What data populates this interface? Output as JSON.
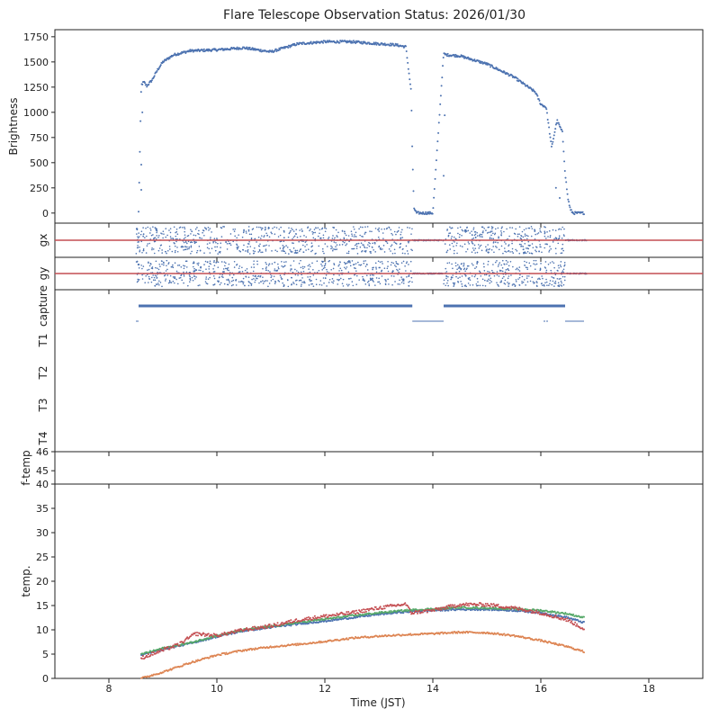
{
  "chart_data": {
    "type": "scatter",
    "title": "Flare Telescope Observation Status: 2026/01/30",
    "xlabel": "Time (JST)",
    "xlim": [
      7,
      19
    ],
    "xticks": [
      "8",
      "10",
      "12",
      "14",
      "16",
      "18"
    ],
    "colors": {
      "blue": "#4c72b0",
      "red": "#c44e52",
      "green": "#55a868",
      "orange": "#dd8452"
    },
    "panels": [
      {
        "id": "brightness",
        "ylabel": "Brightness",
        "ylim": [
          -100,
          1820
        ],
        "yticks": [
          "0",
          "250",
          "500",
          "750",
          "1000",
          "1250",
          "1500",
          "1750"
        ],
        "series": [
          {
            "name": "brightness",
            "color": "#4c72b0",
            "x": [
              8.55,
              8.6,
              8.63,
              8.65,
              8.7,
              8.8,
              8.9,
              9.0,
              9.2,
              9.5,
              10.0,
              10.5,
              11.0,
              11.5,
              12.0,
              12.5,
              13.0,
              13.3,
              13.5,
              13.6,
              13.62,
              13.65,
              13.7,
              14.0,
              14.2,
              14.25,
              14.5,
              15.0,
              15.5,
              15.9,
              16.0,
              16.1,
              16.2,
              16.3,
              16.4,
              16.45,
              16.5,
              16.55,
              16.6,
              16.8
            ],
            "y": [
              10,
              1270,
              1290,
              1300,
              1260,
              1320,
              1420,
              1500,
              1570,
              1610,
              1620,
              1640,
              1600,
              1680,
              1700,
              1700,
              1680,
              1670,
              1650,
              1200,
              600,
              50,
              0,
              0,
              1580,
              1570,
              1560,
              1480,
              1350,
              1200,
              1080,
              1050,
              650,
              920,
              800,
              400,
              150,
              30,
              0,
              0
            ]
          },
          {
            "name": "outliers",
            "color": "#4c72b0",
            "x": [
              8.6,
              8.6,
              8.62,
              14.2,
              14.22,
              16.28,
              16.35
            ],
            "y": [
              480,
              230,
              1000,
              370,
              970,
              250,
              150
            ]
          }
        ]
      },
      {
        "id": "gx",
        "ylabel": "gx",
        "ylim": [
          -1,
          1
        ],
        "reference_line": 0,
        "active_ranges": [
          [
            8.5,
            13.62
          ],
          [
            14.2,
            16.45
          ]
        ],
        "scatter_amplitude": 0.8
      },
      {
        "id": "gy",
        "ylabel": "gy",
        "ylim": [
          -1,
          1
        ],
        "reference_line": 0,
        "active_ranges": [
          [
            8.5,
            13.62
          ],
          [
            14.2,
            16.45
          ]
        ],
        "scatter_amplitude": 0.8
      },
      {
        "id": "capture",
        "ylabel_categories": [
          "capture",
          "T1",
          "T2",
          "T3",
          "T4"
        ],
        "capture_ranges": [
          [
            8.55,
            13.62
          ],
          [
            14.2,
            16.45
          ]
        ],
        "baseline_ranges": [
          [
            8.5,
            8.55
          ],
          [
            13.62,
            14.2
          ],
          [
            16.45,
            16.8
          ]
        ]
      },
      {
        "id": "f-temp",
        "ylabel": "f-temp",
        "ylim": [
          44.3,
          46
        ],
        "yticks": [
          "45",
          "46"
        ]
      },
      {
        "id": "temp",
        "ylabel": "temp.",
        "ylim": [
          0,
          40
        ],
        "yticks": [
          "0",
          "5",
          "10",
          "15",
          "20",
          "25",
          "30",
          "35",
          "40"
        ],
        "series": [
          {
            "name": "blue",
            "color": "#4c72b0",
            "x": [
              8.6,
              9.0,
              9.5,
              10.0,
              10.5,
              11.0,
              11.5,
              12.0,
              12.5,
              13.0,
              13.5,
              14.0,
              14.5,
              15.0,
              15.5,
              16.0,
              16.5,
              16.8
            ],
            "y": [
              4.8,
              6.0,
              7.2,
              8.6,
              9.8,
              10.5,
              11.2,
              11.8,
              12.5,
              13.2,
              13.7,
              14.0,
              14.2,
              14.2,
              14.0,
              13.5,
              12.5,
              11.5
            ]
          },
          {
            "name": "green",
            "color": "#55a868",
            "x": [
              8.6,
              9.0,
              9.5,
              10.0,
              10.5,
              11.0,
              11.5,
              12.0,
              12.5,
              13.0,
              13.5,
              14.0,
              14.5,
              15.0,
              15.5,
              16.0,
              16.5,
              16.8
            ],
            "y": [
              5.0,
              6.2,
              7.3,
              8.8,
              10.0,
              10.7,
              11.5,
              12.2,
              12.9,
              13.5,
              14.0,
              14.3,
              14.6,
              14.5,
              14.3,
              14.0,
              13.3,
              12.5
            ]
          },
          {
            "name": "red",
            "color": "#c44e52",
            "x": [
              8.6,
              9.0,
              9.3,
              9.6,
              10.0,
              10.5,
              11.0,
              11.5,
              12.0,
              12.5,
              13.0,
              13.5,
              13.6,
              14.0,
              14.5,
              15.0,
              15.5,
              16.0,
              16.5,
              16.8
            ],
            "y": [
              4.2,
              5.8,
              7.0,
              9.2,
              8.8,
              10.0,
              10.8,
              12.0,
              12.8,
              13.5,
              14.5,
              15.3,
              13.5,
              14.0,
              15.2,
              15.2,
              14.5,
              13.5,
              12.0,
              10.2
            ]
          },
          {
            "name": "orange",
            "color": "#dd8452",
            "x": [
              8.6,
              9.0,
              9.5,
              10.0,
              10.5,
              11.0,
              11.5,
              12.0,
              12.5,
              13.0,
              13.5,
              14.0,
              14.5,
              15.0,
              15.5,
              16.0,
              16.5,
              16.8
            ],
            "y": [
              0.0,
              1.3,
              3.2,
              4.8,
              5.8,
              6.5,
              7.0,
              7.6,
              8.3,
              8.7,
              9.0,
              9.2,
              9.5,
              9.4,
              8.8,
              7.8,
              6.5,
              5.5
            ]
          }
        ]
      }
    ]
  }
}
